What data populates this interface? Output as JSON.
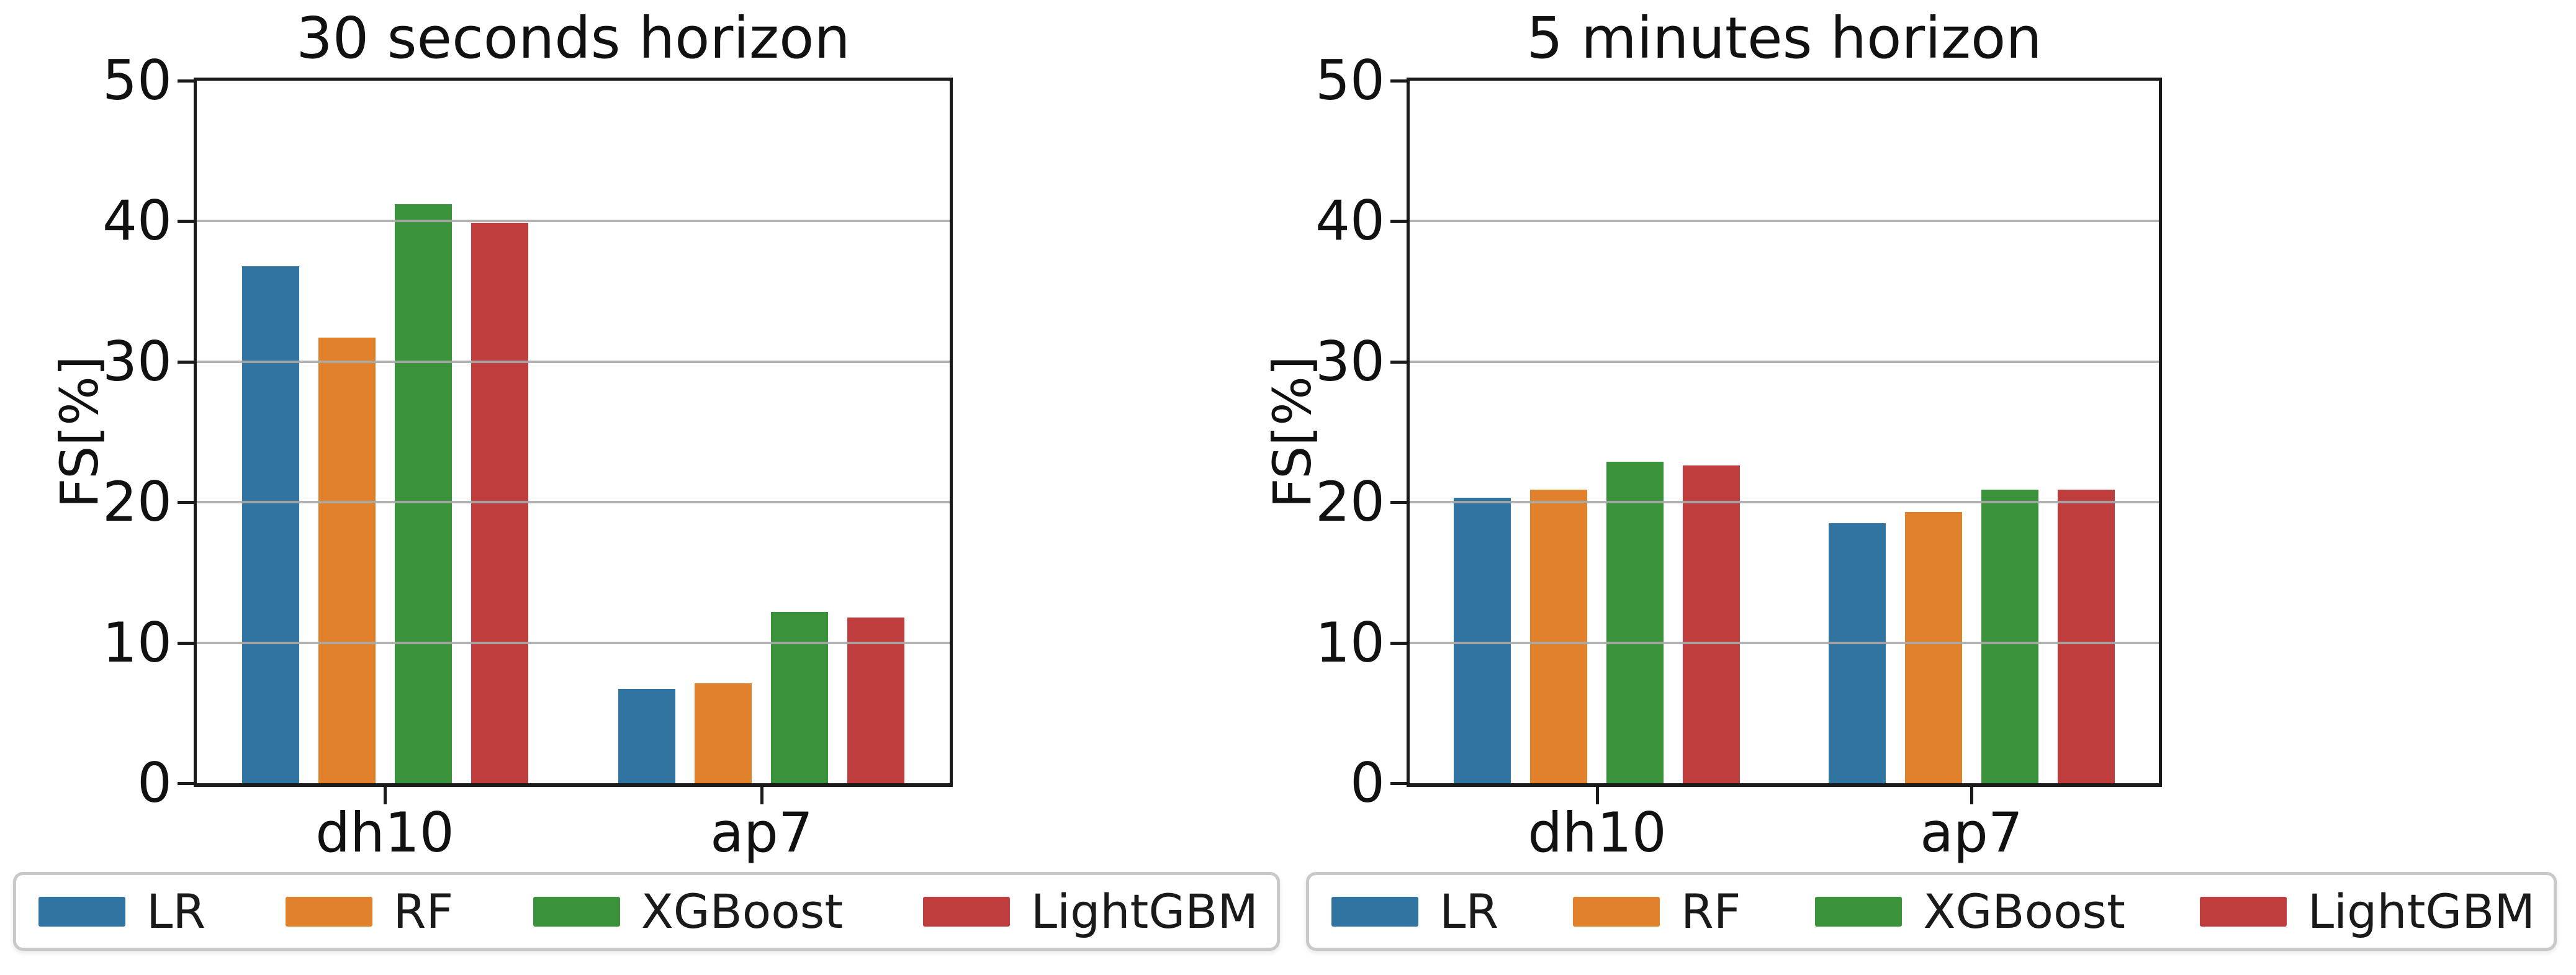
{
  "figure": {
    "background": "#ffffff",
    "axis_color": "#1a1a1a",
    "grid_color": "#aaaaaa",
    "legend_border_color": "#c9c9c9"
  },
  "legend": {
    "items": [
      {
        "label": "LR",
        "color": "#3274A1"
      },
      {
        "label": "RF",
        "color": "#E1812C"
      },
      {
        "label": "XGBoost",
        "color": "#3A923A"
      },
      {
        "label": "LightGBM",
        "color": "#C03D3E"
      }
    ]
  },
  "chart_data": [
    {
      "type": "bar",
      "title": "30 seconds horizon",
      "ylabel": "FS[%]",
      "categories": [
        "dh10",
        "ap7"
      ],
      "series": [
        {
          "name": "LR",
          "color": "#3274A1",
          "values": [
            36.8,
            6.7
          ]
        },
        {
          "name": "RF",
          "color": "#E1812C",
          "values": [
            31.7,
            7.1
          ]
        },
        {
          "name": "XGBoost",
          "color": "#3A923A",
          "values": [
            41.2,
            12.2
          ]
        },
        {
          "name": "LightGBM",
          "color": "#C03D3E",
          "values": [
            39.9,
            11.8
          ]
        }
      ],
      "ylim": [
        0,
        50
      ],
      "yticks": [
        0,
        10,
        20,
        30,
        40,
        50
      ],
      "grid": true,
      "legend_position": "below"
    },
    {
      "type": "bar",
      "title": "5 minutes horizon",
      "ylabel": "FS[%]",
      "categories": [
        "dh10",
        "ap7"
      ],
      "series": [
        {
          "name": "LR",
          "color": "#3274A1",
          "values": [
            20.3,
            18.5
          ]
        },
        {
          "name": "RF",
          "color": "#E1812C",
          "values": [
            20.9,
            19.3
          ]
        },
        {
          "name": "XGBoost",
          "color": "#3A923A",
          "values": [
            22.9,
            20.9
          ]
        },
        {
          "name": "LightGBM",
          "color": "#C03D3E",
          "values": [
            22.6,
            20.9
          ]
        }
      ],
      "ylim": [
        0,
        50
      ],
      "yticks": [
        0,
        10,
        20,
        30,
        40,
        50
      ],
      "grid": true,
      "legend_position": "below"
    }
  ]
}
